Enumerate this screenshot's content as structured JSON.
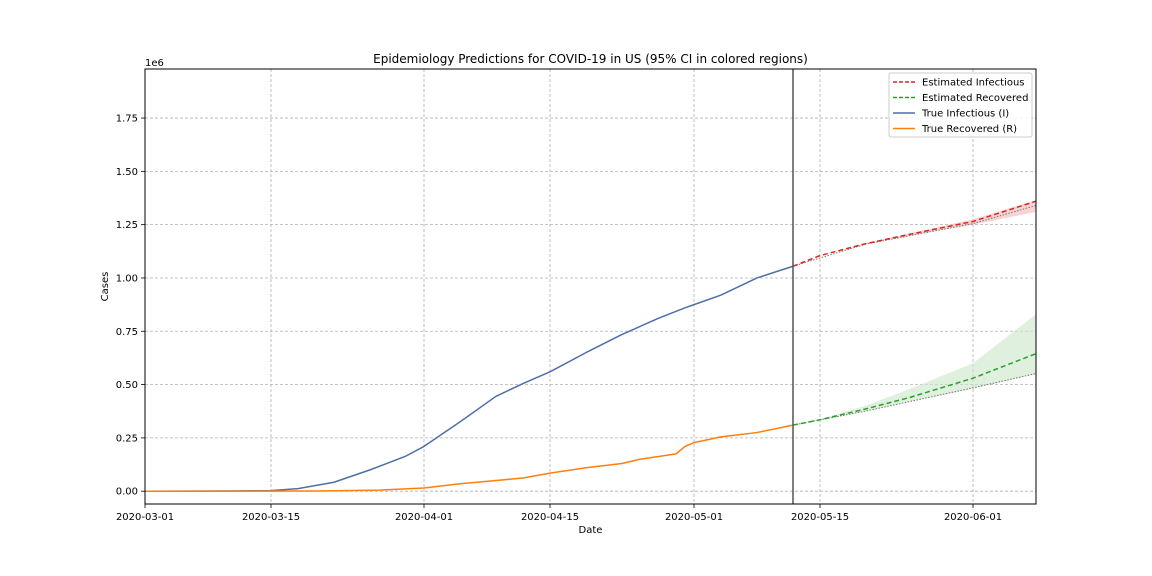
{
  "chart_data": {
    "type": "line",
    "title": "Epidemiology Predictions for COVID-19 in US (95% CI in colored regions)",
    "xlabel": "Date",
    "ylabel": "Cases",
    "y_multiplier_label": "1e6",
    "xlim": [
      "2020-03-01",
      "2020-06-08"
    ],
    "ylim": [
      -60000,
      1980000
    ],
    "x_ticks": [
      "2020-03-01",
      "2020-03-15",
      "2020-04-01",
      "2020-04-15",
      "2020-05-01",
      "2020-05-15",
      "2020-06-01"
    ],
    "y_ticks": [
      0,
      250000,
      500000,
      750000,
      1000000,
      1250000,
      1500000,
      1750000
    ],
    "y_tick_labels": [
      "0.00",
      "0.25",
      "0.50",
      "0.75",
      "1.00",
      "1.25",
      "1.50",
      "1.75"
    ],
    "grid": true,
    "legend_position": "top-right",
    "forecast_start": "2020-05-12",
    "colors": {
      "estimated_infectious": "#d62728",
      "estimated_recovered": "#2ca02c",
      "true_infectious": "#4f6fa7",
      "true_recovered": "#ff7f0e",
      "ci_infectious": "#f4b6b6",
      "ci_recovered": "#c9e6c9",
      "forecast_line": "#555555"
    },
    "series": [
      {
        "name": "Estimated Infectious",
        "style": "dashed",
        "x": [
          "2020-05-12",
          "2020-05-15",
          "2020-05-20",
          "2020-05-25",
          "2020-06-01",
          "2020-06-08"
        ],
        "y": [
          1055000,
          1105000,
          1160000,
          1205000,
          1265000,
          1360000
        ]
      },
      {
        "name": "Estimated Recovered",
        "style": "dashed",
        "x": [
          "2020-05-12",
          "2020-05-15",
          "2020-05-20",
          "2020-05-25",
          "2020-06-01",
          "2020-06-08"
        ],
        "y": [
          310000,
          335000,
          385000,
          440000,
          530000,
          645000
        ]
      },
      {
        "name": "True Infectious (I)",
        "style": "solid",
        "x": [
          "2020-03-01",
          "2020-03-10",
          "2020-03-15",
          "2020-03-18",
          "2020-03-22",
          "2020-03-26",
          "2020-03-30",
          "2020-04-01",
          "2020-04-05",
          "2020-04-09",
          "2020-04-12",
          "2020-04-15",
          "2020-04-19",
          "2020-04-23",
          "2020-04-27",
          "2020-04-30",
          "2020-05-01",
          "2020-05-04",
          "2020-05-08",
          "2020-05-12"
        ],
        "y": [
          0,
          1000,
          3000,
          12000,
          42000,
          100000,
          165000,
          210000,
          325000,
          445000,
          505000,
          560000,
          650000,
          735000,
          810000,
          860000,
          875000,
          920000,
          1000000,
          1055000
        ]
      },
      {
        "name": "True Recovered (R)",
        "style": "solid",
        "x": [
          "2020-03-01",
          "2020-03-20",
          "2020-03-27",
          "2020-04-01",
          "2020-04-05",
          "2020-04-09",
          "2020-04-12",
          "2020-04-15",
          "2020-04-19",
          "2020-04-23",
          "2020-04-25",
          "2020-04-29",
          "2020-04-30",
          "2020-05-01",
          "2020-05-04",
          "2020-05-08",
          "2020-05-12"
        ],
        "y": [
          0,
          1000,
          5000,
          15000,
          35000,
          50000,
          62000,
          85000,
          110000,
          130000,
          150000,
          175000,
          210000,
          228000,
          255000,
          275000,
          310000
        ]
      }
    ],
    "confidence_bands": [
      {
        "series": "Estimated Infectious",
        "x": [
          "2020-05-12",
          "2020-05-15",
          "2020-05-20",
          "2020-05-25",
          "2020-06-01",
          "2020-06-08"
        ],
        "lower": [
          1055000,
          1105000,
          1158000,
          1198000,
          1250000,
          1310000
        ],
        "upper": [
          1055000,
          1105000,
          1162000,
          1210000,
          1275000,
          1365000
        ]
      },
      {
        "series": "Estimated Recovered",
        "x": [
          "2020-05-12",
          "2020-05-15",
          "2020-05-20",
          "2020-05-25",
          "2020-06-01",
          "2020-06-08"
        ],
        "lower": [
          310000,
          333000,
          375000,
          420000,
          480000,
          550000
        ],
        "upper": [
          310000,
          338000,
          400000,
          480000,
          600000,
          830000
        ]
      }
    ],
    "lower_bound_lines": [
      {
        "series": "Estimated Infectious",
        "x": [
          "2020-05-12",
          "2020-05-20",
          "2020-06-01",
          "2020-06-08"
        ],
        "y": [
          1055000,
          1158000,
          1255000,
          1340000
        ]
      },
      {
        "series": "Estimated Recovered",
        "x": [
          "2020-05-12",
          "2020-05-20",
          "2020-06-01",
          "2020-06-08"
        ],
        "y": [
          310000,
          375000,
          485000,
          552000
        ]
      }
    ]
  }
}
